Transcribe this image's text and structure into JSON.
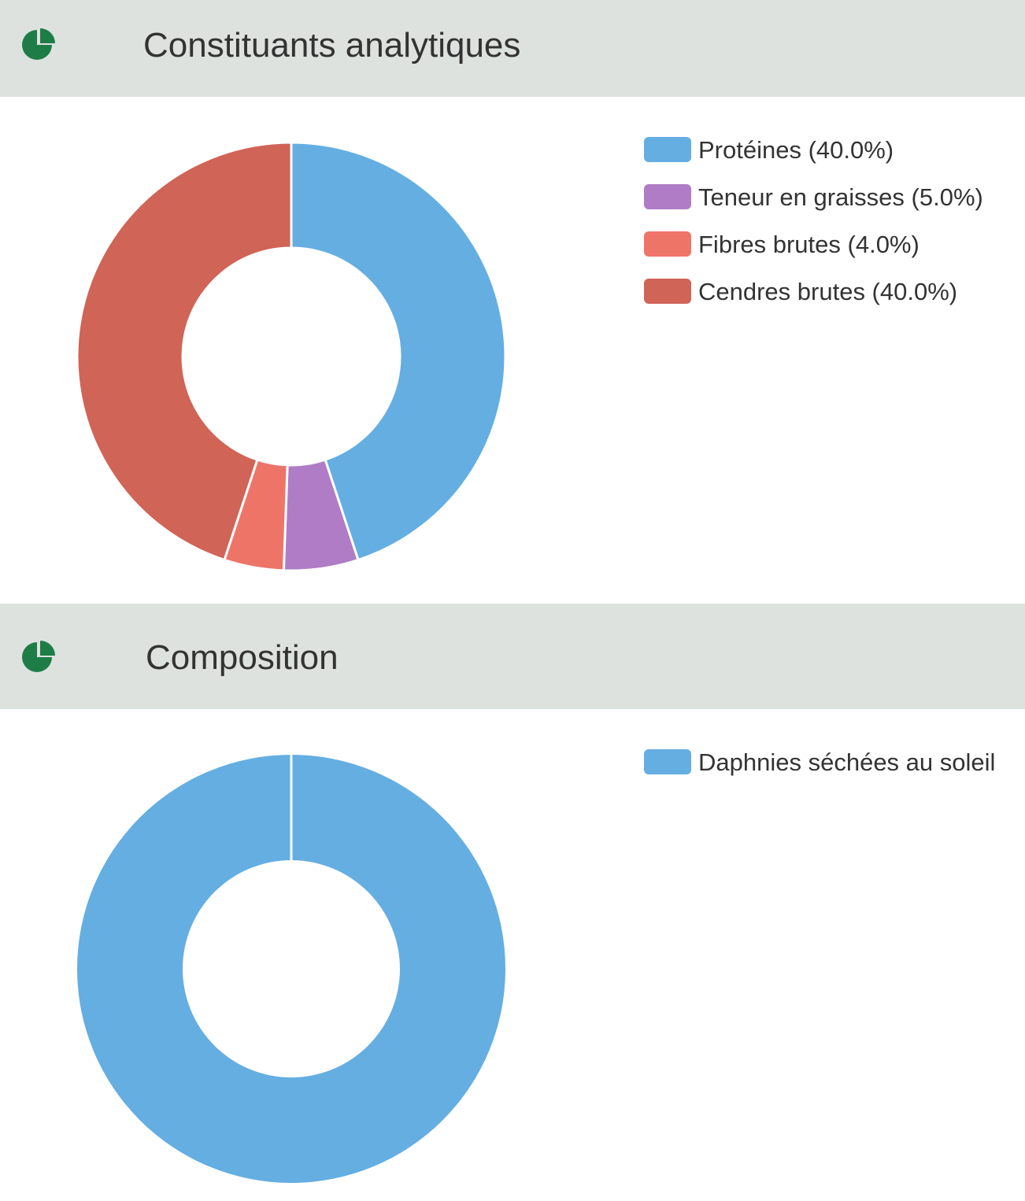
{
  "sections": [
    {
      "title": "Constituants analytiques",
      "icon": "pie-chart-icon",
      "icon_color": "#1e7d46",
      "legend": [
        {
          "label": "Protéines (40.0%)"
        },
        {
          "label": "Teneur en graisses (5.0%)"
        },
        {
          "label": "Fibres brutes (4.0%)"
        },
        {
          "label": "Cendres brutes (40.0%)"
        }
      ]
    },
    {
      "title": "Composition",
      "icon": "pie-chart-icon",
      "icon_color": "#1e7d46",
      "legend": [
        {
          "label": "Daphnies séchées au soleil"
        }
      ]
    }
  ],
  "chart_data": [
    {
      "type": "pie",
      "style": "doughnut",
      "title": "Constituants analytiques",
      "categories": [
        "Protéines",
        "Teneur en graisses",
        "Fibres brutes",
        "Cendres brutes"
      ],
      "values": [
        40.0,
        5.0,
        4.0,
        40.0
      ],
      "colors": [
        "#64aee2",
        "#b07cc6",
        "#ef7468",
        "#d06457"
      ],
      "legend_position": "right"
    },
    {
      "type": "pie",
      "style": "doughnut",
      "title": "Composition",
      "categories": [
        "Daphnies séchées au soleil"
      ],
      "values": [
        100
      ],
      "colors": [
        "#64aee2"
      ],
      "legend_position": "right"
    }
  ]
}
